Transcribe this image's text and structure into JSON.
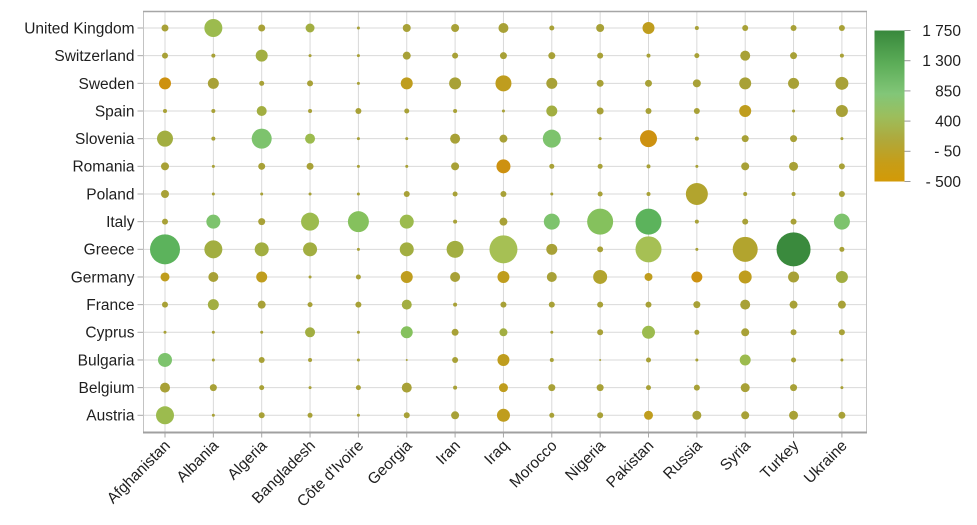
{
  "chart_data": {
    "type": "bubble",
    "title": "",
    "xlabel": "",
    "ylabel": "",
    "x_categories": [
      "Afghanistan",
      "Albania",
      "Algeria",
      "Bangladesh",
      "Côte d'Ivoire",
      "Georgia",
      "Iran",
      "Iraq",
      "Morocco",
      "Nigeria",
      "Pakistan",
      "Russia",
      "Syria",
      "Turkey",
      "Ukraine"
    ],
    "y_categories": [
      "United Kingdom",
      "Switzerland",
      "Sweden",
      "Spain",
      "Slovenia",
      "Romania",
      "Poland",
      "Italy",
      "Greece",
      "Germany",
      "France",
      "Cyprus",
      "Bulgaria",
      "Belgium",
      "Austria"
    ],
    "color_scale": {
      "min": -500,
      "max": 1750,
      "tick_labels": [
        "1 750",
        "1 300",
        "850",
        "400",
        "- 50",
        "- 500"
      ],
      "tick_values": [
        1750,
        1300,
        850,
        400,
        -50,
        -500
      ],
      "legend_position": "right",
      "gradient": [
        {
          "pos": 0.0,
          "color": "#38883c"
        },
        {
          "pos": 0.22,
          "color": "#5cad58"
        },
        {
          "pos": 0.42,
          "color": "#82c678"
        },
        {
          "pos": 0.57,
          "color": "#9cbe5c"
        },
        {
          "pos": 0.72,
          "color": "#afa93c"
        },
        {
          "pos": 0.88,
          "color": "#c79d17"
        },
        {
          "pos": 1.0,
          "color": "#d39a07"
        }
      ]
    },
    "palette": {
      "o": "#a8a137",
      "b": "#b2a42e",
      "d": "#bf9d1e",
      "O": "#cd9110",
      "g": "#a2ae41",
      "y": "#9cbb4e",
      "Y": "#a6c054",
      "m": "#85c15d",
      "l": "#7dc36d",
      "G": "#5cb35c",
      "D": "#3a8a3d"
    },
    "grid": true,
    "bubbles": {
      "radius_px": [
        [
          3.5,
          9,
          3.5,
          4.5,
          1.5,
          4,
          4,
          5,
          2.5,
          4,
          6,
          2,
          3,
          3,
          3
        ],
        [
          3,
          2,
          6,
          1.5,
          1.5,
          4,
          3,
          3.5,
          3.5,
          3,
          2,
          2.5,
          5,
          3.5,
          2
        ],
        [
          6,
          5.5,
          2.5,
          3,
          1.5,
          6,
          6,
          8,
          5.5,
          3.5,
          3.5,
          4,
          6,
          5.5,
          6.5
        ],
        [
          2,
          2,
          5,
          2,
          3,
          2.5,
          2,
          1.5,
          5.5,
          3.5,
          3,
          3,
          6,
          1.5,
          6
        ],
        [
          8,
          2,
          10,
          5,
          1.5,
          1.5,
          5,
          4,
          9,
          1.5,
          8.5,
          2,
          3.5,
          3.5,
          1.5
        ],
        [
          4,
          1.5,
          3.5,
          3.5,
          1.5,
          1.5,
          4,
          7,
          2.5,
          2.5,
          2,
          1.5,
          4,
          4.5,
          3
        ],
        [
          4,
          1.5,
          1.5,
          1.5,
          1.5,
          3,
          2.5,
          3,
          1.5,
          2.5,
          2,
          11,
          2,
          2,
          3
        ],
        [
          3,
          7,
          3.5,
          9,
          10.5,
          7,
          2,
          4,
          8,
          13,
          13,
          2,
          3,
          3,
          8
        ],
        [
          15,
          9,
          7,
          7,
          1.5,
          7,
          8.5,
          14,
          5.5,
          3,
          13,
          1.5,
          12.5,
          17,
          2.5
        ],
        [
          4.5,
          5,
          5.5,
          1.5,
          2.5,
          6,
          5,
          6,
          5,
          7,
          4,
          5.5,
          6.5,
          5.5,
          6
        ],
        [
          3,
          5.5,
          4,
          2.5,
          3,
          5,
          2,
          3,
          3,
          3,
          3,
          3.5,
          5,
          4,
          4
        ],
        [
          1.5,
          1.5,
          1.5,
          5,
          1.5,
          6,
          3.5,
          4,
          1.5,
          3,
          6.5,
          2.5,
          4,
          3,
          3
        ],
        [
          7,
          1.5,
          3,
          2,
          1.5,
          1,
          3,
          6,
          2,
          1,
          2.5,
          1.5,
          5.5,
          2.5,
          1.5
        ],
        [
          5,
          3.5,
          2.5,
          1.5,
          2.5,
          5,
          2,
          4.5,
          3.5,
          3.5,
          2.5,
          3,
          4.5,
          3.5,
          1.5
        ],
        [
          9,
          1.5,
          3,
          2.5,
          1.5,
          3,
          4,
          6.5,
          2.5,
          3,
          4.5,
          4.5,
          4,
          4.5,
          3.5
        ]
      ],
      "color_key": [
        "oyogoooooodoooo",
        "oogoooooooooooo",
        "Ooooododooooooo",
        "oogooooogooodoo",
        "golyooooloOoooo",
        "oooooooOooooooo",
        "ooooooooooobooo",
        "oloymyoolmGoool",
        "GgggoggYooYobDo",
        "dodoododobdOdog",
        "ogooogooooooooo",
        "ooogomogooyoooo",
        "loooooodooooyoo",
        "ooooooodooooooo",
        "yoooooodoodoooo"
      ]
    }
  }
}
